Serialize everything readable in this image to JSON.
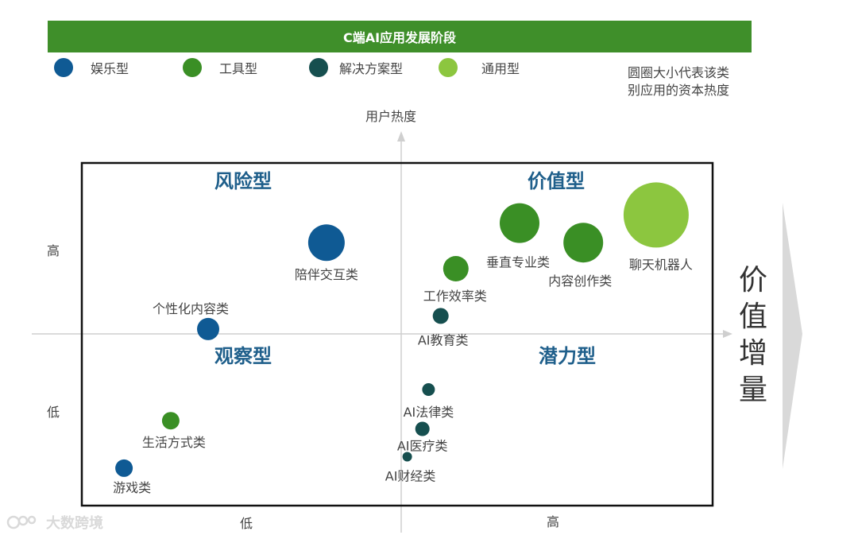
{
  "title": "C端AI应用发展阶段",
  "legend": [
    {
      "key": "entertainment",
      "label": "娱乐型",
      "color": "#0f5a94"
    },
    {
      "key": "tool",
      "label": "工具型",
      "color": "#3a8f25"
    },
    {
      "key": "solution",
      "label": "解决方案型",
      "color": "#164f4f"
    },
    {
      "key": "general",
      "label": "通用型",
      "color": "#8cc63f"
    }
  ],
  "note": "圆圈大小代表该类别应用的资本热度",
  "axes": {
    "y_label": "用户热度",
    "x_label": "价值增量",
    "y_high": "高",
    "y_low": "低",
    "x_low": "低",
    "x_high": "高"
  },
  "quadrants": {
    "top_left": "风险型",
    "top_right": "价值型",
    "bottom_left": "观察型",
    "bottom_right": "潜力型"
  },
  "watermark": "大数跨境",
  "chart_data": {
    "type": "scatter",
    "title": "C端AI应用发展阶段",
    "xlabel": "价值增量",
    "ylabel": "用户热度",
    "xlim": [
      -1,
      1
    ],
    "ylim": [
      -1,
      1
    ],
    "size_meaning": "资本热度",
    "points": [
      {
        "label": "陪伴交互类",
        "category": "entertainment",
        "x": -0.24,
        "y": 0.56,
        "size": 23
      },
      {
        "label": "个性化内容类",
        "category": "entertainment",
        "x": -0.62,
        "y": 0.03,
        "size": 14
      },
      {
        "label": "游戏类",
        "category": "entertainment",
        "x": -0.89,
        "y": -0.82,
        "size": 11
      },
      {
        "label": "生活方式类",
        "category": "tool",
        "x": -0.74,
        "y": -0.53,
        "size": 11
      },
      {
        "label": "垂直专业类",
        "category": "tool",
        "x": 0.39,
        "y": 0.68,
        "size": 25
      },
      {
        "label": "内容创作类",
        "category": "tool",
        "x": 0.6,
        "y": 0.56,
        "size": 25
      },
      {
        "label": "工作效率类",
        "category": "tool",
        "x": 0.18,
        "y": 0.4,
        "size": 16
      },
      {
        "label": "聊天机器人",
        "category": "general",
        "x": 0.84,
        "y": 0.73,
        "size": 41
      },
      {
        "label": "AI教育类",
        "category": "solution",
        "x": 0.13,
        "y": 0.11,
        "size": 10
      },
      {
        "label": "AI法律类",
        "category": "solution",
        "x": 0.09,
        "y": -0.34,
        "size": 8
      },
      {
        "label": "AI医疗类",
        "category": "solution",
        "x": 0.07,
        "y": -0.58,
        "size": 9
      },
      {
        "label": "AI财经类",
        "category": "solution",
        "x": 0.02,
        "y": -0.75,
        "size": 6
      }
    ]
  }
}
